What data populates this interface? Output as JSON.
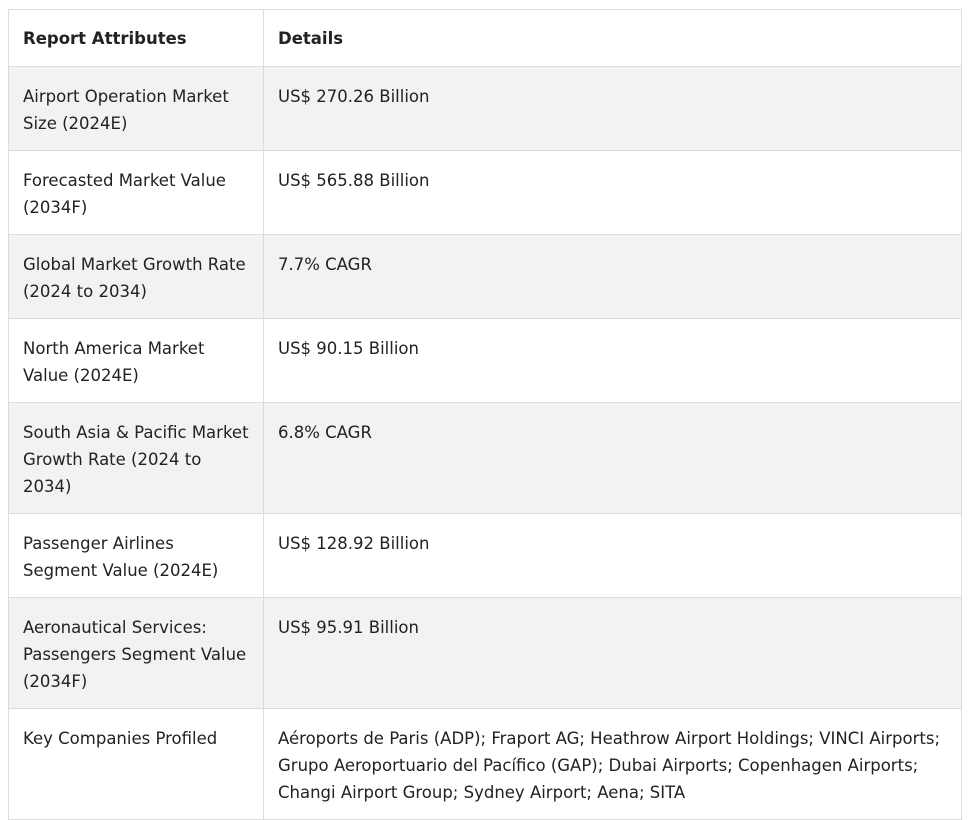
{
  "table": {
    "headers": [
      "Report Attributes",
      "Details"
    ],
    "rows": [
      {
        "attribute": "Airport Operation Market Size (2024E)",
        "detail": "US$ 270.26 Billion"
      },
      {
        "attribute": "Forecasted Market Value (2034F)",
        "detail": "US$ 565.88 Billion"
      },
      {
        "attribute": "Global Market Growth Rate (2024 to 2034)",
        "detail": "7.7% CAGR"
      },
      {
        "attribute": "North America Market Value (2024E)",
        "detail": "US$ 90.15 Billion"
      },
      {
        "attribute": "South Asia & Pacific Market Growth Rate (2024 to 2034)",
        "detail": "6.8% CAGR"
      },
      {
        "attribute": "Passenger Airlines Segment Value (2024E)",
        "detail": "US$ 128.92 Billion"
      },
      {
        "attribute": "Aeronautical Services: Passengers Segment Value (2034F)",
        "detail": "US$ 95.91 Billion"
      },
      {
        "attribute": "Key Companies Profiled",
        "detail": "Aéroports de Paris (ADP); Fraport AG; Heathrow Airport Holdings; VINCI Airports; Grupo Aeroportuario del Pacífico (GAP); Dubai Airports; Copenhagen Airports; Changi Airport Group; Sydney Airport; Aena; SITA"
      }
    ]
  }
}
